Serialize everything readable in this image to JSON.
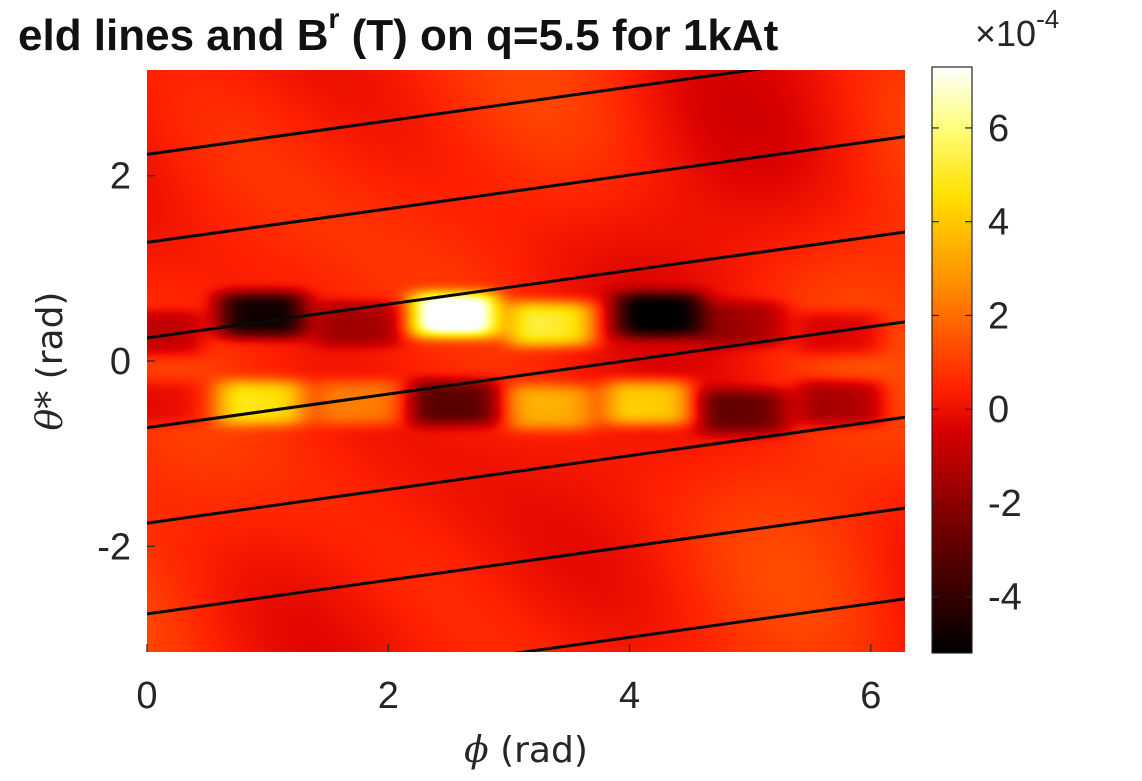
{
  "chart_data": {
    "type": "heatmap",
    "title": "eld lines and B",
    "title_superscript": "r",
    "title_rest": " (T) on q=5.5 for 1kAt",
    "colorbar_exponent_text": "×10",
    "colorbar_exponent_power": "-4",
    "xlabel_symbol": "ϕ",
    "xlabel_unit": " (rad)",
    "ylabel_symbol": "θ*",
    "ylabel_unit": " (rad)",
    "xlim": [
      0,
      6.2832
    ],
    "ylim": [
      -3.1416,
      3.1416
    ],
    "x_ticks": [
      "0",
      "2",
      "4",
      "6"
    ],
    "y_ticks": [
      "2",
      "0",
      "-2"
    ],
    "colorbar_ticks": [
      "6",
      "4",
      "2",
      "0",
      "-2",
      "-4"
    ],
    "colorbar_range": [
      -5.2,
      7.3
    ],
    "colormap": "hot",
    "background_level": 0.4,
    "blobs": [
      {
        "phi": 0.1,
        "theta": 0.3,
        "value": -1.8
      },
      {
        "phi": 0.95,
        "theta": 0.5,
        "value": -5.2
      },
      {
        "phi": 1.75,
        "theta": 0.4,
        "value": -2.0
      },
      {
        "phi": 2.55,
        "theta": 0.5,
        "value": 7.3
      },
      {
        "phi": 3.35,
        "theta": 0.4,
        "value": 4.8
      },
      {
        "phi": 4.25,
        "theta": 0.5,
        "value": -5.0
      },
      {
        "phi": 4.95,
        "theta": 0.4,
        "value": -1.8
      },
      {
        "phi": 5.75,
        "theta": 0.3,
        "value": -1.6
      },
      {
        "phi": 0.1,
        "theta": -0.45,
        "value": -1.2
      },
      {
        "phi": 0.95,
        "theta": -0.45,
        "value": 4.0
      },
      {
        "phi": 1.75,
        "theta": -0.45,
        "value": 2.2
      },
      {
        "phi": 2.55,
        "theta": -0.45,
        "value": -3.5
      },
      {
        "phi": 3.35,
        "theta": -0.5,
        "value": 3.0
      },
      {
        "phi": 4.15,
        "theta": -0.45,
        "value": 4.2
      },
      {
        "phi": 4.95,
        "theta": -0.55,
        "value": -3.0
      },
      {
        "phi": 5.75,
        "theta": -0.45,
        "value": -2.5
      }
    ],
    "field_lines": {
      "slope": 0.1818,
      "count": 7,
      "offsets": [
        {
          "theta_at_phi0": 2.23
        },
        {
          "theta_at_phi0": 1.28
        },
        {
          "theta_at_phi0": 0.25
        },
        {
          "theta_at_phi0": -0.72
        },
        {
          "theta_at_phi0": -1.75
        },
        {
          "theta_at_phi0": -2.73
        },
        {
          "theta_at_phi0": -3.71
        }
      ]
    }
  }
}
